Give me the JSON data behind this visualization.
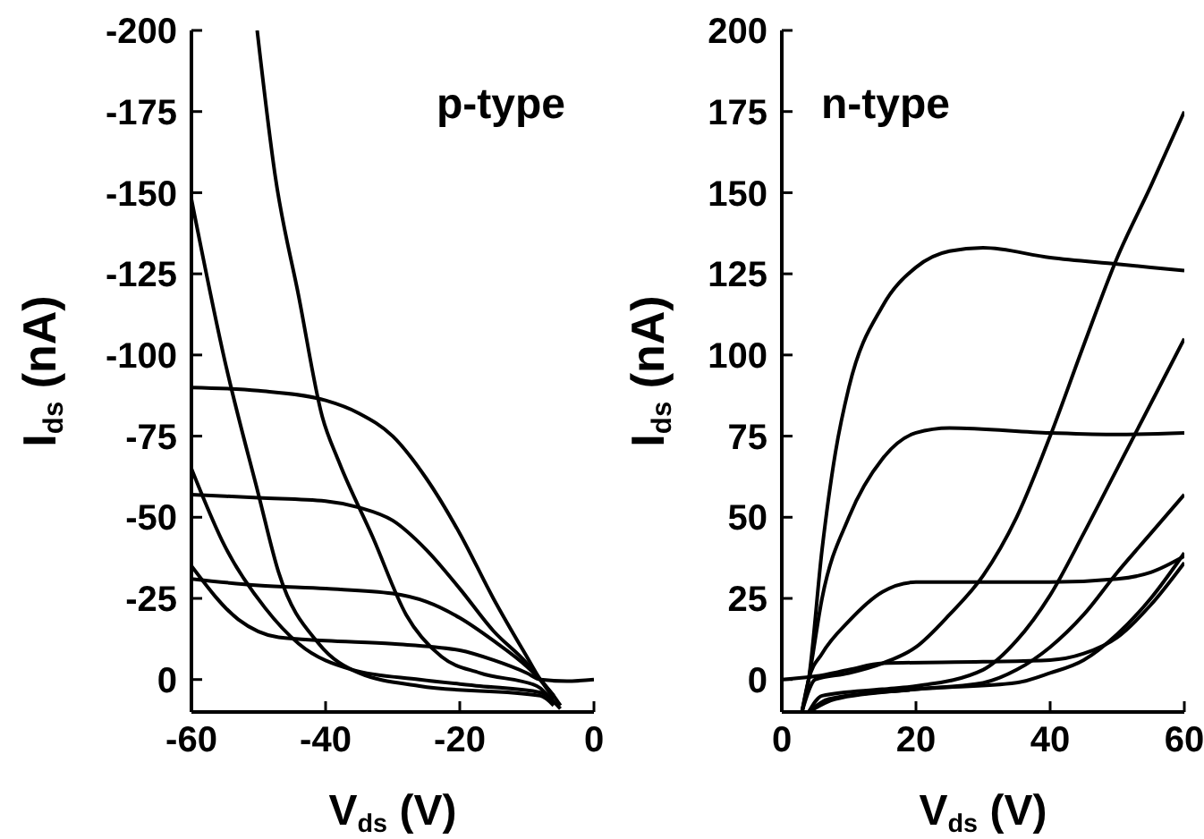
{
  "chart_data": [
    {
      "type": "line",
      "xlabel": "V$_{ds}$ (V)",
      "ylabel": "I$_{ds}$ (nA)",
      "annotations": [
        "p-type"
      ],
      "xlim": [
        -60,
        0
      ],
      "xticks": [
        -60,
        -40,
        -20,
        0
      ],
      "ylim": [
        10,
        -200
      ],
      "yticks": [
        0,
        -25,
        -50,
        -75,
        -100,
        -125,
        -150,
        -175,
        -200
      ],
      "grid": false,
      "marker": "none",
      "line_style": "solid",
      "series": [
        {
          "color": "#000000",
          "x": [
            -60,
            -50,
            -40,
            -35,
            -30,
            -25,
            -20,
            -15,
            -10,
            -8,
            -6,
            -5
          ],
          "values": [
            -90,
            -89,
            -86,
            -82,
            -75,
            -62,
            -45,
            -25,
            -7,
            0,
            5,
            8
          ]
        },
        {
          "color": "#000000",
          "x": [
            -60,
            -50,
            -40,
            -35,
            -30,
            -25,
            -20,
            -15,
            -10,
            -8,
            -6
          ],
          "values": [
            -57,
            -56,
            -55,
            -53,
            -49,
            -40,
            -28,
            -15,
            -5,
            0,
            6
          ]
        },
        {
          "color": "#000000",
          "x": [
            -60,
            -50,
            -40,
            -30,
            -25,
            -20,
            -15,
            -10,
            -8,
            -6
          ],
          "values": [
            -31,
            -29,
            -28,
            -26.5,
            -24,
            -19,
            -12,
            -4,
            0,
            5
          ]
        },
        {
          "color": "#000000",
          "x": [
            -60,
            -53,
            -47,
            -40,
            -30,
            -20,
            -15,
            -10,
            -8,
            -4,
            0
          ],
          "values": [
            -35,
            -18.5,
            -13,
            -12,
            -11,
            -9,
            -6,
            -2,
            0,
            0.5,
            0
          ]
        },
        {
          "color": "#000000",
          "x": [
            -60,
            -55,
            -49,
            -44,
            -36,
            -26,
            -17,
            -8,
            -5
          ],
          "values": [
            -65,
            -41,
            -22,
            -11,
            -3,
            0,
            2,
            4,
            9
          ]
        },
        {
          "color": "#000000",
          "x": [
            -60,
            -55,
            -50,
            -47,
            -41,
            -35,
            -26,
            -8,
            -6
          ],
          "values": [
            -148,
            -98,
            -57,
            -33,
            -11,
            -2,
            2,
            5,
            8
          ]
        },
        {
          "color": "#000000",
          "x": [
            -50.2,
            -47.5,
            -44,
            -40.5,
            -38,
            -33,
            -28,
            -22.7,
            -17,
            -8.5,
            -6
          ],
          "values": [
            -200,
            -155,
            -118,
            -81,
            -67,
            -44,
            -20,
            -7,
            -2,
            2,
            7
          ]
        }
      ]
    },
    {
      "type": "line",
      "xlabel": "V$_{ds}$ (V)",
      "ylabel": "I$_{ds}$ (nA)",
      "annotations": [
        "n-type"
      ],
      "xlim": [
        0,
        60
      ],
      "xticks": [
        0,
        20,
        40,
        60
      ],
      "ylim": [
        -10,
        200
      ],
      "yticks": [
        0,
        25,
        50,
        75,
        100,
        125,
        150,
        175,
        200
      ],
      "grid": false,
      "marker": "none",
      "line_style": "solid",
      "series": [
        {
          "color": "#000000",
          "x": [
            3,
            4,
            6,
            8,
            10,
            15,
            20,
            25,
            30,
            40,
            50,
            60
          ],
          "values": [
            -10,
            0,
            40,
            70,
            90,
            115,
            127,
            132,
            133,
            130,
            128,
            126
          ]
        },
        {
          "color": "#000000",
          "x": [
            3,
            4,
            6,
            10,
            15,
            20,
            25,
            40,
            50,
            60
          ],
          "values": [
            -10,
            0,
            25,
            50,
            68,
            76,
            77.5,
            76,
            75.5,
            76
          ]
        },
        {
          "color": "#000000",
          "x": [
            3,
            4,
            6,
            10,
            15,
            20,
            40,
            50,
            55,
            60
          ],
          "values": [
            -10,
            0,
            8,
            18,
            27,
            30,
            30,
            31,
            33,
            38
          ]
        },
        {
          "color": "#000000",
          "x": [
            0,
            5,
            10,
            15,
            30,
            40,
            45,
            50,
            55,
            60
          ],
          "values": [
            0,
            1,
            3,
            5,
            5.5,
            6,
            8,
            13,
            23,
            36
          ]
        },
        {
          "color": "#000000",
          "x": [
            3,
            5,
            10,
            15,
            20,
            25,
            30,
            35,
            40,
            45,
            50,
            55,
            60
          ],
          "values": [
            -10,
            0,
            2,
            5,
            10,
            20,
            32,
            50,
            75,
            103,
            130,
            152,
            175
          ]
        },
        {
          "color": "#000000",
          "x": [
            4,
            6,
            15,
            20,
            30,
            35,
            40,
            45,
            50,
            55,
            60
          ],
          "values": [
            -10,
            -5,
            -3,
            -2,
            3,
            12,
            26,
            45,
            65,
            85,
            105
          ]
        },
        {
          "color": "#000000",
          "x": [
            4,
            7,
            20,
            30,
            35,
            40,
            45,
            50,
            55,
            60
          ],
          "values": [
            -10,
            -6,
            -3,
            -1,
            3,
            10,
            20,
            33,
            45,
            57
          ]
        },
        {
          "color": "#000000",
          "x": [
            4,
            8,
            20,
            35,
            40,
            45,
            50,
            55,
            60
          ],
          "values": [
            -10,
            -6,
            -3,
            -1,
            2,
            6,
            14,
            25,
            39
          ]
        }
      ]
    }
  ]
}
